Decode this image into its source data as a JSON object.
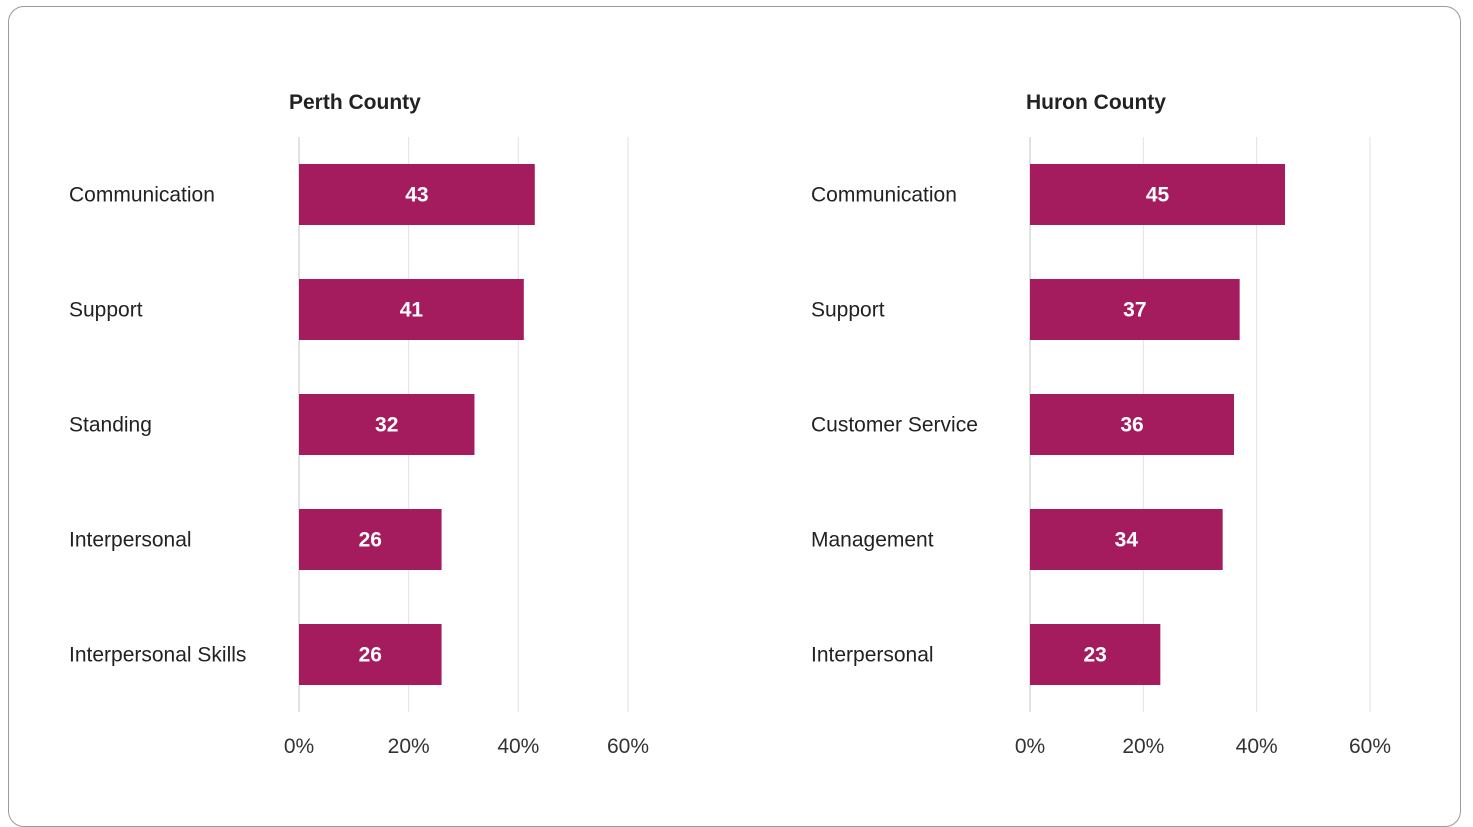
{
  "chart_data": [
    {
      "type": "bar",
      "orientation": "horizontal",
      "title": "Perth County",
      "categories": [
        "Communication",
        "Support",
        "Standing",
        "Interpersonal",
        "Interpersonal Skills"
      ],
      "values": [
        43,
        41,
        32,
        26,
        26
      ],
      "x_ticks": [
        "0%",
        "20%",
        "40%",
        "60%"
      ],
      "xlim": [
        0,
        60
      ],
      "grid": true,
      "bar_color": "#A51C5E"
    },
    {
      "type": "bar",
      "orientation": "horizontal",
      "title": "Huron County",
      "categories": [
        "Communication",
        "Support",
        "Customer Service",
        "Management",
        "Interpersonal"
      ],
      "values": [
        45,
        37,
        36,
        34,
        23
      ],
      "x_ticks": [
        "0%",
        "20%",
        "40%",
        "60%"
      ],
      "xlim": [
        0,
        60
      ],
      "grid": true,
      "bar_color": "#A51C5E"
    }
  ]
}
